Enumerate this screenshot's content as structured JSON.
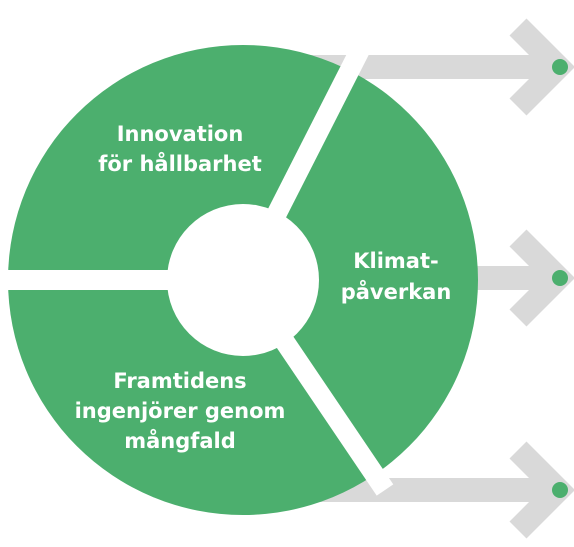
{
  "segments": [
    {
      "lines": [
        "Innovation",
        "för hållbarhet"
      ]
    },
    {
      "lines": [
        "Klimat-",
        "påverkan"
      ]
    },
    {
      "lines": [
        "Framtidens",
        "ingenjörer genom",
        "mångfald"
      ]
    }
  ]
}
